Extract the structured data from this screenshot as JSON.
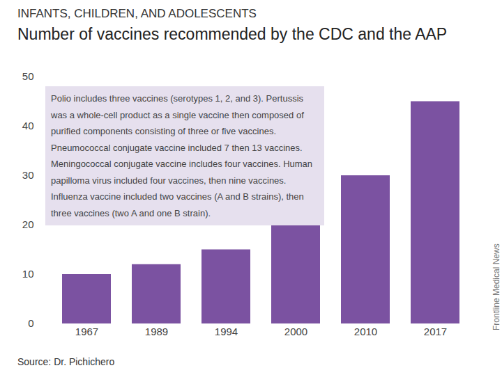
{
  "chart_data": {
    "type": "bar",
    "subtitle": "INFANTS, CHILDREN, AND ADOLESCENTS",
    "title": "Number of vaccines recommended by the CDC and the AAP",
    "annotation": "Polio includes three vaccines (serotypes 1, 2, and 3). Pertussis was a whole-cell product as a single vaccine then composed of purified components consisting of three or five vaccines. Pneumococcal conjugate vaccine included 7 then 13 vaccines. Meningococcal conjugate vaccine includes four vaccines. Human papilloma virus included four vaccines, then nine vaccines. Influenza vaccine included two vaccines (A and B strains), then three vaccines (two A and one B strain).",
    "source": "Source: Dr. Pichichero",
    "credit": "Frontline Medical News",
    "categories": [
      "1967",
      "1989",
      "1994",
      "2000",
      "2010",
      "2017"
    ],
    "values": [
      10,
      12,
      15,
      20,
      30,
      45
    ],
    "color": "#7b52a1",
    "ylim": [
      0,
      50
    ],
    "yticks": [
      0,
      10,
      20,
      30,
      40,
      50
    ],
    "grid": false,
    "data_labels": false
  }
}
